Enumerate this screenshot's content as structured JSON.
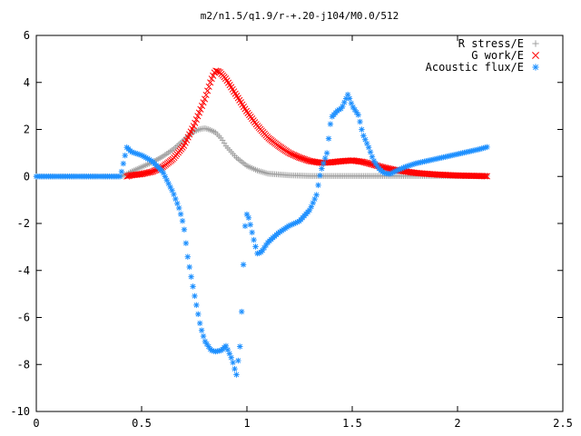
{
  "chart_data": {
    "type": "scatter",
    "title": "m2/n1.5/q1.9/r-+.20-j104/M0.0/512",
    "xlabel": "",
    "ylabel": "",
    "xlim": [
      0,
      2.5
    ],
    "ylim": [
      -10,
      6
    ],
    "xticks": [
      0,
      0.5,
      1,
      1.5,
      2,
      2.5
    ],
    "xtick_labels": [
      "0",
      "0.5",
      "1",
      "1.5",
      "2",
      "2.5"
    ],
    "yticks": [
      -10,
      -8,
      -6,
      -4,
      -2,
      0,
      2,
      4,
      6
    ],
    "ytick_labels": [
      "-10",
      "-8",
      "-6",
      "-4",
      "-2",
      "0",
      "2",
      "4",
      "6"
    ],
    "grid": false,
    "legend_position": "top-right",
    "series": [
      {
        "name": "R stress/E",
        "marker": "plus",
        "color": "#a0a0a0",
        "x": [
          0.0,
          0.1,
          0.2,
          0.3,
          0.4,
          0.43,
          0.45,
          0.5,
          0.55,
          0.6,
          0.65,
          0.7,
          0.75,
          0.78,
          0.8,
          0.82,
          0.85,
          0.88,
          0.9,
          0.95,
          1.0,
          1.05,
          1.1,
          1.2,
          1.3,
          1.4,
          1.5,
          1.6,
          1.7,
          1.8,
          1.9,
          2.0,
          2.1,
          2.14
        ],
        "y": [
          0,
          0,
          0,
          0,
          0,
          0.1,
          0.2,
          0.4,
          0.6,
          0.85,
          1.15,
          1.55,
          1.92,
          2.02,
          2.05,
          2.0,
          1.88,
          1.6,
          1.3,
          0.8,
          0.45,
          0.25,
          0.12,
          0.05,
          0.02,
          0.02,
          0.02,
          0.02,
          0.02,
          0.02,
          0.02,
          0.02,
          0.02,
          0.02
        ]
      },
      {
        "name": "G work/E",
        "marker": "x",
        "color": "#ff0000",
        "x": [
          0.43,
          0.45,
          0.5,
          0.55,
          0.6,
          0.65,
          0.7,
          0.75,
          0.8,
          0.83,
          0.85,
          0.87,
          0.9,
          0.95,
          1.0,
          1.05,
          1.1,
          1.15,
          1.2,
          1.25,
          1.3,
          1.35,
          1.4,
          1.45,
          1.5,
          1.55,
          1.6,
          1.65,
          1.7,
          1.8,
          1.9,
          2.0,
          2.1,
          2.14
        ],
        "y": [
          0.0,
          0.05,
          0.1,
          0.2,
          0.4,
          0.75,
          1.3,
          2.2,
          3.3,
          4.1,
          4.5,
          4.45,
          4.15,
          3.45,
          2.75,
          2.15,
          1.65,
          1.3,
          1.0,
          0.8,
          0.65,
          0.58,
          0.6,
          0.65,
          0.68,
          0.62,
          0.5,
          0.38,
          0.28,
          0.15,
          0.08,
          0.04,
          0.02,
          0.01
        ]
      },
      {
        "name": "Acoustic flux/E",
        "marker": "star",
        "color": "#1e90ff",
        "x": [
          0.0,
          0.1,
          0.2,
          0.3,
          0.4,
          0.43,
          0.45,
          0.5,
          0.55,
          0.6,
          0.65,
          0.68,
          0.7,
          0.72,
          0.75,
          0.78,
          0.8,
          0.83,
          0.85,
          0.88,
          0.9,
          0.93,
          0.95,
          0.97,
          0.98,
          0.99,
          1.0,
          1.01,
          1.03,
          1.05,
          1.07,
          1.1,
          1.15,
          1.2,
          1.25,
          1.3,
          1.33,
          1.35,
          1.38,
          1.4,
          1.43,
          1.45,
          1.48,
          1.5,
          1.53,
          1.55,
          1.58,
          1.6,
          1.63,
          1.65,
          1.68,
          1.7,
          1.75,
          1.8,
          1.85,
          1.9,
          1.95,
          2.0,
          2.05,
          2.1,
          2.14
        ],
        "y": [
          0,
          0,
          0,
          0,
          0,
          1.25,
          1.05,
          0.9,
          0.65,
          0.2,
          -0.7,
          -1.4,
          -2.1,
          -3.5,
          -5.0,
          -6.4,
          -7.0,
          -7.4,
          -7.45,
          -7.4,
          -7.2,
          -7.8,
          -8.45,
          -7.0,
          -4.5,
          -2.2,
          -1.6,
          -1.8,
          -2.6,
          -3.3,
          -3.2,
          -2.8,
          -2.4,
          -2.1,
          -1.9,
          -1.4,
          -0.8,
          0.2,
          1.0,
          2.5,
          2.8,
          2.9,
          3.5,
          3.0,
          2.6,
          1.8,
          1.2,
          0.7,
          0.3,
          0.15,
          0.1,
          0.2,
          0.4,
          0.55,
          0.65,
          0.75,
          0.85,
          0.95,
          1.05,
          1.15,
          1.25
        ]
      }
    ]
  }
}
